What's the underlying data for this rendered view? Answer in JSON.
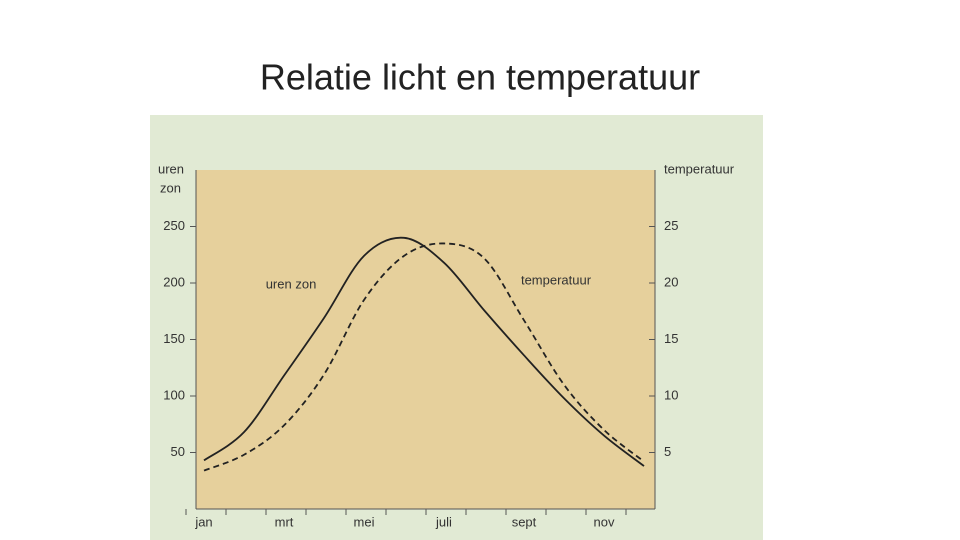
{
  "chart_data": {
    "type": "line",
    "title": "Relatie licht en temperatuur",
    "ylabel": [
      "uren",
      "zon"
    ],
    "y2label": "temperatuur",
    "categories": [
      "jan",
      null,
      "mrt",
      null,
      "mei",
      null,
      "juli",
      null,
      "sept",
      null,
      "nov",
      null
    ],
    "series": [
      {
        "name": "uren zon",
        "color": "#222222",
        "line_style": "solid",
        "values": [
          43,
          68,
          118,
          169,
          224,
          240,
          218,
          176,
          136,
          98,
          65,
          38
        ]
      },
      {
        "name": "temperatuur",
        "color": "#222222",
        "line_style": "dashed",
        "axis": "y2",
        "values": [
          3.4,
          4.8,
          7.4,
          11.9,
          18.5,
          22.4,
          23.5,
          22.2,
          16.7,
          11,
          7,
          4.2
        ]
      }
    ],
    "ylim": [
      0,
      300
    ],
    "yticks": [
      50,
      100,
      150,
      200,
      250
    ],
    "y2lim": [
      0,
      30
    ],
    "y2ticks": [
      5,
      10,
      15,
      20,
      25
    ]
  }
}
